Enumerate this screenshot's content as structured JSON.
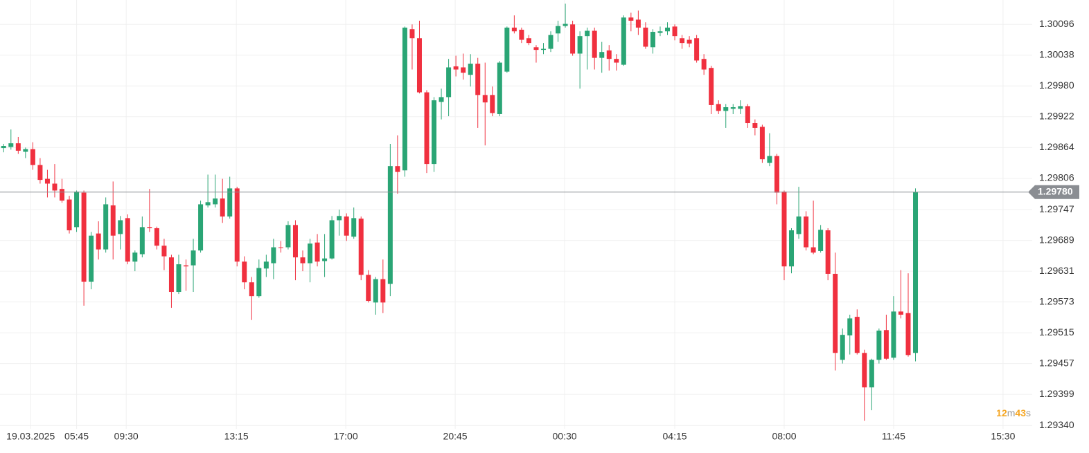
{
  "chart_data": {
    "type": "candlestick",
    "up_color": "#2aa575",
    "down_color": "#f0303f",
    "grid": true,
    "xlim": [
      -0.5,
      141
    ],
    "ylim": [
      1.29334,
      1.30142
    ],
    "xticks": [
      {
        "value": 3.7,
        "label": "19.03.2025"
      },
      {
        "value": 10,
        "label": "05:45"
      },
      {
        "value": 16.8,
        "label": "09:30"
      },
      {
        "value": 31.9,
        "label": "13:15"
      },
      {
        "value": 46.9,
        "label": "17:00"
      },
      {
        "value": 61.9,
        "label": "20:45"
      },
      {
        "value": 76.9,
        "label": "00:30"
      },
      {
        "value": 92,
        "label": "04:15"
      },
      {
        "value": 107,
        "label": "08:00"
      },
      {
        "value": 122,
        "label": "11:45"
      },
      {
        "value": 137,
        "label": "15:30"
      }
    ],
    "yticks": [
      1.30096,
      1.30038,
      {
        "value": 1.2998,
        "label": "1.29980"
      },
      1.29922,
      1.29864,
      1.29806,
      1.29747,
      1.29689,
      1.29631,
      1.29573,
      1.29515,
      1.29457,
      1.29399,
      {
        "value": 1.2934,
        "label": "1.29340"
      }
    ],
    "last_price": {
      "value": 1.2978,
      "label": "1.29780"
    },
    "timer": {
      "minutes": 12,
      "seconds": 43
    },
    "timer_units": [
      "m",
      "s"
    ],
    "open": [
      1.29863,
      1.29865,
      1.29872,
      1.29856,
      1.29861,
      1.29831,
      1.29805,
      1.29796,
      1.29786,
      1.29766,
      1.29714,
      1.29779,
      1.29611,
      1.29702,
      1.29672,
      1.29755,
      1.29701,
      1.29731,
      1.29649,
      1.29663,
      1.29714,
      1.29712,
      1.29679,
      1.29657,
      1.29592,
      1.29642,
      1.29642,
      1.2967,
      1.29755,
      1.29757,
      1.29768,
      1.29734,
      1.29787,
      1.29649,
      1.2961,
      1.29584,
      1.29636,
      1.29646,
      1.29676,
      1.29676,
      1.29718,
      1.29657,
      1.29646,
      1.29685,
      1.2965,
      1.29655,
      1.29727,
      1.29734,
      1.29696,
      1.2973,
      1.29624,
      1.29572,
      1.29616,
      1.29607,
      1.29829,
      1.29821,
      1.30087,
      1.3007,
      1.29968,
      1.29833,
      1.2995,
      1.29959,
      1.30017,
      1.30015,
      1.30001,
      1.30022,
      1.29963,
      1.29963,
      1.29927,
      1.30007,
      1.3009,
      1.30086,
      1.3007,
      1.30053,
      1.30048,
      1.3005,
      1.30079,
      1.30093,
      1.30096,
      1.30041,
      1.30074,
      1.30084,
      1.30033,
      1.30047,
      1.30031,
      1.3002,
      1.30109,
      1.30105,
      1.3009,
      1.30053,
      1.3008,
      1.30083,
      1.30092,
      1.3007,
      1.30067,
      1.3007,
      1.30031,
      1.30014,
      1.29946,
      1.29933,
      1.29937,
      1.29937,
      1.29942,
      1.2991,
      1.29903,
      1.29835,
      1.29848,
      1.29781,
      1.2964,
      1.29701,
      1.29734,
      1.29676,
      1.29669,
      1.29708,
      1.29626,
      1.29464,
      1.2951,
      1.29545,
      1.29477,
      1.29412,
      1.29464,
      1.2952,
      1.29468,
      1.29555,
      1.29552,
      1.29477
    ],
    "high": [
      1.29871,
      1.29898,
      1.29884,
      1.29864,
      1.29874,
      1.29844,
      1.29822,
      1.29833,
      1.29805,
      1.29773,
      1.29783,
      1.29783,
      1.29705,
      1.29725,
      1.2977,
      1.298,
      1.29735,
      1.29738,
      1.2967,
      1.29734,
      1.29786,
      1.29715,
      1.29692,
      1.29662,
      1.29662,
      1.29653,
      1.29692,
      1.29764,
      1.29813,
      1.29813,
      1.29805,
      1.29809,
      1.2979,
      1.29659,
      1.2962,
      1.29653,
      1.29662,
      1.29692,
      1.29688,
      1.29725,
      1.29727,
      1.2967,
      1.29692,
      1.29701,
      1.29701,
      1.29735,
      1.29747,
      1.2974,
      1.29751,
      1.29734,
      1.29633,
      1.2962,
      1.29653,
      1.29871,
      1.29887,
      1.30092,
      1.30096,
      1.30103,
      1.29972,
      1.29959,
      1.29975,
      1.30031,
      1.30037,
      1.30041,
      1.3004,
      1.30033,
      1.30024,
      1.29979,
      1.30027,
      1.30092,
      1.30113,
      1.3009,
      1.30076,
      1.30057,
      1.30061,
      1.30083,
      1.30103,
      1.30135,
      1.30103,
      1.30083,
      1.3009,
      1.3009,
      1.30063,
      1.30057,
      1.3004,
      1.30113,
      1.30118,
      1.30122,
      1.301,
      1.30087,
      1.30092,
      1.301,
      1.30096,
      1.30076,
      1.30074,
      1.30076,
      1.3004,
      1.30018,
      1.29953,
      1.29946,
      1.29946,
      1.29953,
      1.29946,
      1.29917,
      1.29907,
      1.29891,
      1.29852,
      1.29783,
      1.29712,
      1.2979,
      1.29744,
      1.29764,
      1.29718,
      1.29712,
      1.29666,
      1.29523,
      1.29549,
      1.29559,
      1.29483,
      1.29466,
      1.29523,
      1.29549,
      1.29584,
      1.29633,
      1.29627,
      1.29787
    ],
    "low": [
      1.29855,
      1.2986,
      1.29852,
      1.29844,
      1.29822,
      1.29796,
      1.2977,
      1.2977,
      1.2976,
      1.29702,
      1.29705,
      1.29566,
      1.29597,
      1.29653,
      1.29666,
      1.29653,
      1.29672,
      1.29644,
      1.29631,
      1.29657,
      1.29705,
      1.29672,
      1.29633,
      1.29562,
      1.29588,
      1.29594,
      1.29592,
      1.29666,
      1.29751,
      1.29751,
      1.29722,
      1.2973,
      1.2964,
      1.29597,
      1.29539,
      1.29581,
      1.2962,
      1.29616,
      1.29666,
      1.29672,
      1.29614,
      1.29631,
      1.2961,
      1.2964,
      1.2962,
      1.29653,
      1.29698,
      1.29688,
      1.29692,
      1.29614,
      1.29572,
      1.29549,
      1.29552,
      1.29584,
      1.29777,
      1.29809,
      1.30011,
      1.29966,
      1.29816,
      1.29818,
      1.29917,
      1.29923,
      1.29998,
      1.29992,
      1.29979,
      1.29901,
      1.29868,
      1.29923,
      1.29923,
      1.30005,
      1.30079,
      1.30061,
      1.30057,
      1.30024,
      1.3004,
      1.30044,
      1.30063,
      1.3009,
      1.30037,
      1.29975,
      1.30011,
      1.30011,
      1.30005,
      1.30009,
      1.30009,
      1.30018,
      1.30083,
      1.30076,
      1.3005,
      1.30041,
      1.30074,
      1.30076,
      1.30066,
      1.3005,
      1.30053,
      1.30024,
      1.30001,
      1.29927,
      1.29927,
      1.29901,
      1.29927,
      1.29927,
      1.29901,
      1.29887,
      1.29835,
      1.29829,
      1.29757,
      1.29614,
      1.29627,
      1.29692,
      1.2967,
      1.29663,
      1.29666,
      1.29614,
      1.29444,
      1.29457,
      1.29474,
      1.29474,
      1.29349,
      1.29369,
      1.29457,
      1.29464,
      1.29464,
      1.29542,
      1.2947,
      1.29461
    ],
    "close": [
      1.29867,
      1.29872,
      1.29858,
      1.29861,
      1.29831,
      1.29803,
      1.29796,
      1.29783,
      1.29764,
      1.29708,
      1.29781,
      1.29611,
      1.29698,
      1.29672,
      1.29757,
      1.29698,
      1.29727,
      1.29649,
      1.29666,
      1.29714,
      1.29712,
      1.29679,
      1.29659,
      1.29592,
      1.29644,
      1.2964,
      1.2967,
      1.29757,
      1.29761,
      1.29768,
      1.29734,
      1.29787,
      1.29649,
      1.2961,
      1.29584,
      1.29637,
      1.29649,
      1.29676,
      1.29675,
      1.29718,
      1.29657,
      1.29646,
      1.29683,
      1.29649,
      1.29655,
      1.29727,
      1.29735,
      1.29698,
      1.29731,
      1.29624,
      1.29575,
      1.29616,
      1.29572,
      1.29829,
      1.29818,
      1.3009,
      1.3007,
      1.29968,
      1.29833,
      1.29953,
      1.29959,
      1.30015,
      1.30011,
      1.30005,
      1.30022,
      1.29963,
      1.29949,
      1.29929,
      1.30024,
      1.3009,
      1.30083,
      1.30067,
      1.30061,
      1.30048,
      1.3005,
      1.30076,
      1.30093,
      1.30097,
      1.30041,
      1.30074,
      1.30084,
      1.30033,
      1.30044,
      1.30031,
      1.30024,
      1.30109,
      1.30103,
      1.3009,
      1.30054,
      1.30082,
      1.30083,
      1.3009,
      1.30074,
      1.30061,
      1.3006,
      1.30028,
      1.30011,
      1.29944,
      1.29933,
      1.2994,
      1.2994,
      1.29942,
      1.2991,
      1.29901,
      1.29842,
      1.29848,
      1.29779,
      1.2964,
      1.29708,
      1.29734,
      1.29676,
      1.29666,
      1.29709,
      1.29626,
      1.29477,
      1.29511,
      1.29542,
      1.29477,
      1.29412,
      1.29464,
      1.29519,
      1.29466,
      1.29555,
      1.29549,
      1.29473,
      1.2978
    ]
  }
}
